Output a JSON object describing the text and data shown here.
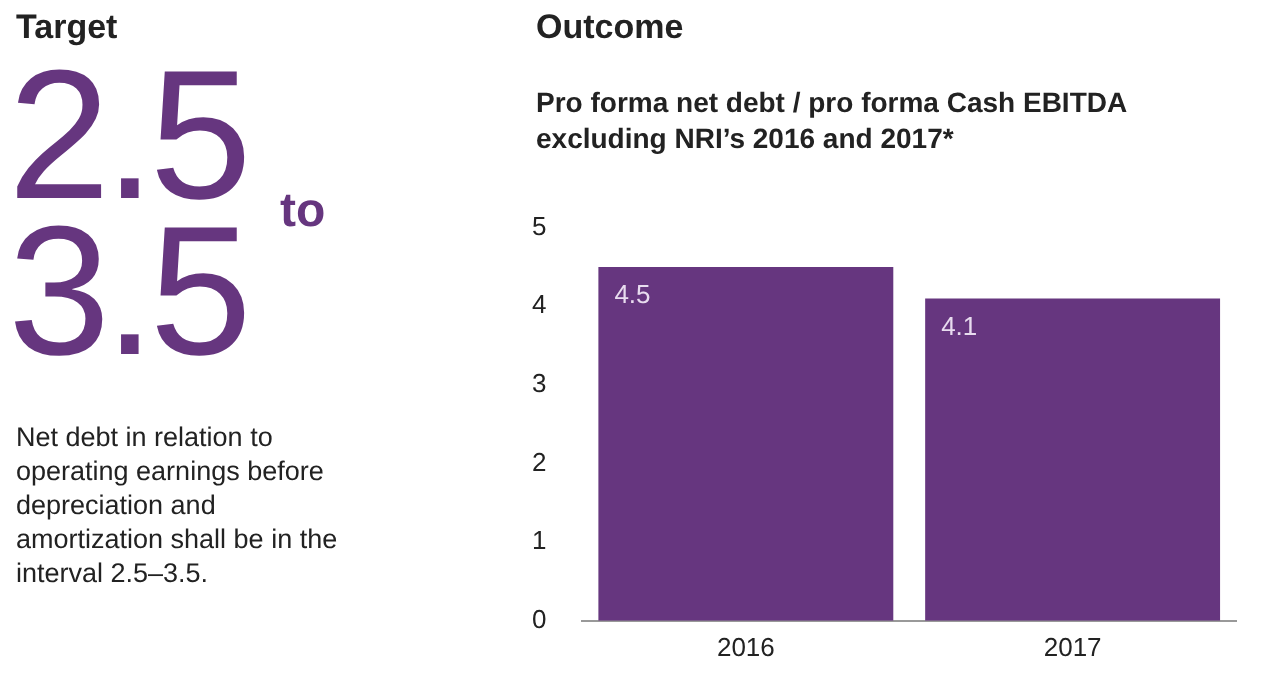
{
  "chart_data": [
    {
      "type": "other",
      "title": "Target",
      "annotations": [
        "2.5",
        "to",
        "3.5",
        "Net debt in relation to operating earnings before depreciation and amortization shall be in the interval 2.5–3.5."
      ]
    },
    {
      "type": "bar",
      "title": "Outcome",
      "subtitle": "Pro forma net debt / pro forma Cash EBITDA excluding NRI’s 2016 and 2017*",
      "categories": [
        "2016",
        "2017"
      ],
      "values": [
        4.5,
        4.1
      ],
      "color": "#66367f",
      "ylim": [
        0,
        5
      ],
      "yticks": [
        0,
        1,
        2,
        3,
        4,
        5
      ],
      "grid": false,
      "data_labels": true
    }
  ]
}
